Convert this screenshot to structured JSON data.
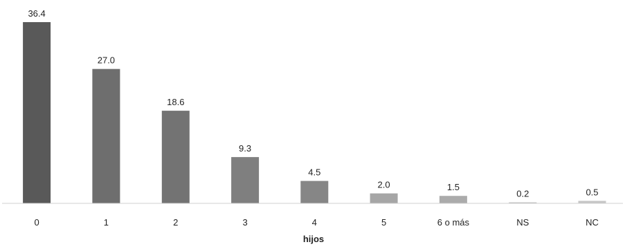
{
  "chart_data": {
    "type": "bar",
    "categories": [
      "0",
      "1",
      "2",
      "3",
      "4",
      "5",
      "6 o más",
      "NS",
      "NC"
    ],
    "values": [
      36.4,
      27.0,
      18.6,
      9.3,
      4.5,
      2.0,
      1.5,
      0.2,
      0.5
    ],
    "value_labels": [
      "36.4",
      "27.0",
      "18.6",
      "9.3",
      "4.5",
      "2.0",
      "1.5",
      "0.2",
      "0.5"
    ],
    "bar_colors": [
      "#595959",
      "#6e6e6e",
      "#737373",
      "#7f7f7f",
      "#868686",
      "#a6a6a6",
      "#ababab",
      "#b8b8b8",
      "#c6c6c6"
    ],
    "axis_color": "#d0d0d0",
    "title": "",
    "xlabel": "hijos",
    "ylabel": "",
    "ylim": [
      0,
      36.4
    ],
    "grid": false,
    "legend": "none"
  }
}
